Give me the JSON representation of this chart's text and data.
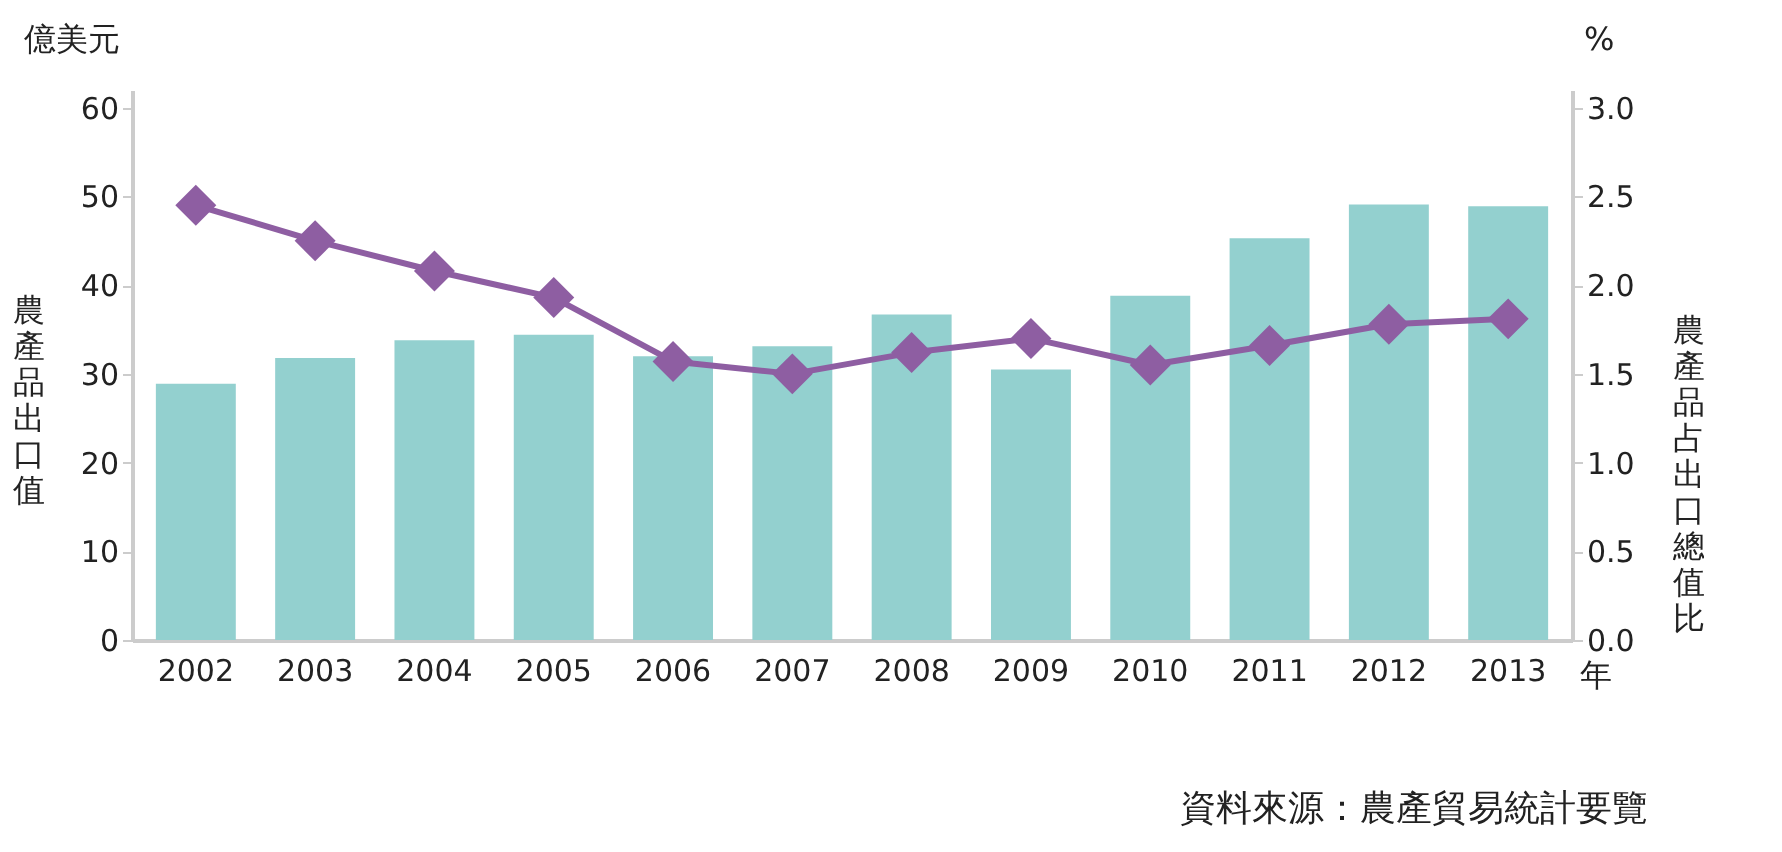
{
  "chart_data": {
    "type": "bar",
    "categories": [
      "2002",
      "2003",
      "2004",
      "2005",
      "2006",
      "2007",
      "2008",
      "2009",
      "2010",
      "2011",
      "2012",
      "2013"
    ],
    "ylabel": "農產品出口值",
    "y2label": "農產品占出口總值比",
    "series": [
      {
        "color": "#93d0cf",
        "values": [
          28.9,
          31.8,
          33.8,
          34.4,
          32,
          33.1,
          36.7,
          30.5,
          38.8,
          45.3,
          49.1,
          48.9
        ]
      },
      {
        "type": "line",
        "axis": "y2",
        "color": "#8e5ea2",
        "marker": "diamond",
        "values": [
          2.45,
          2.25,
          2.08,
          1.93,
          1.57,
          1.5,
          1.62,
          1.7,
          1.55,
          1.66,
          1.78,
          1.81
        ]
      }
    ],
    "ylim": [
      0,
      62
    ],
    "yticks": [
      0,
      10,
      20,
      30,
      40,
      50,
      60
    ],
    "y2lim": [
      0,
      3.1
    ],
    "y2ticks": [
      {
        "value": 0,
        "label": "0.0"
      },
      {
        "value": 0.5,
        "label": "0.5"
      },
      {
        "value": 1,
        "label": "1.0"
      },
      {
        "value": 1.5,
        "label": "1.5"
      },
      {
        "value": 2,
        "label": "2.0"
      },
      {
        "value": 2.5,
        "label": "2.5"
      },
      {
        "value": 3,
        "label": "3.0"
      }
    ],
    "grid": false,
    "annotations": [
      "億美元",
      "%",
      "年",
      "資料來源：農產貿易統計要覽"
    ]
  }
}
